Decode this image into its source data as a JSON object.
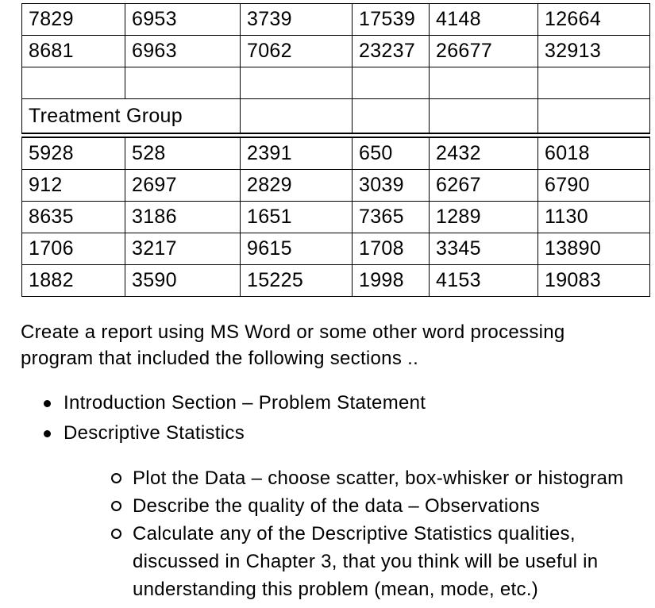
{
  "document": {
    "table": {
      "columns": 6,
      "pre_rows": [
        [
          "7829",
          "6953",
          "3739",
          "17539",
          "4148",
          "12664"
        ],
        [
          "8681",
          "6963",
          "7062",
          "23237",
          "26677",
          "32913"
        ],
        [
          "",
          "",
          "",
          "",
          "",
          ""
        ]
      ],
      "group_header": {
        "label": "Treatment Group",
        "colspan": 2
      },
      "data_rows": [
        [
          "5928",
          "528",
          "2391",
          "650",
          "2432",
          "6018"
        ],
        [
          "912",
          "2697",
          "2829",
          "3039",
          "6267",
          "6790"
        ],
        [
          "8635",
          "3186",
          "1651",
          "7365",
          "1289",
          "1130"
        ],
        [
          "1706",
          "3217",
          "9615",
          "1708",
          "3345",
          "13890"
        ],
        [
          "1882",
          "3590",
          "15225",
          "1998",
          "4153",
          "19083"
        ]
      ]
    },
    "paragraph": {
      "lines": [
        "Create a report using MS Word or some other word processing",
        "program that included the following sections .."
      ]
    },
    "bullets": [
      {
        "label": "Introduction Section – Problem Statement"
      },
      {
        "label": "Descriptive Statistics"
      }
    ],
    "sub_bullets": [
      {
        "lines": [
          "Plot the Data – choose scatter, box-whisker or histogram"
        ]
      },
      {
        "lines": [
          "Describe the quality of the data – Observations"
        ]
      },
      {
        "lines": [
          "Calculate any of the Descriptive Statistics qualities,",
          "discussed in Chapter 3, that you think will be useful in",
          "understanding this problem (mean, mode, etc.)"
        ]
      }
    ]
  },
  "colors": {
    "text": "#000000",
    "border": "#000000",
    "background": "#ffffff"
  }
}
